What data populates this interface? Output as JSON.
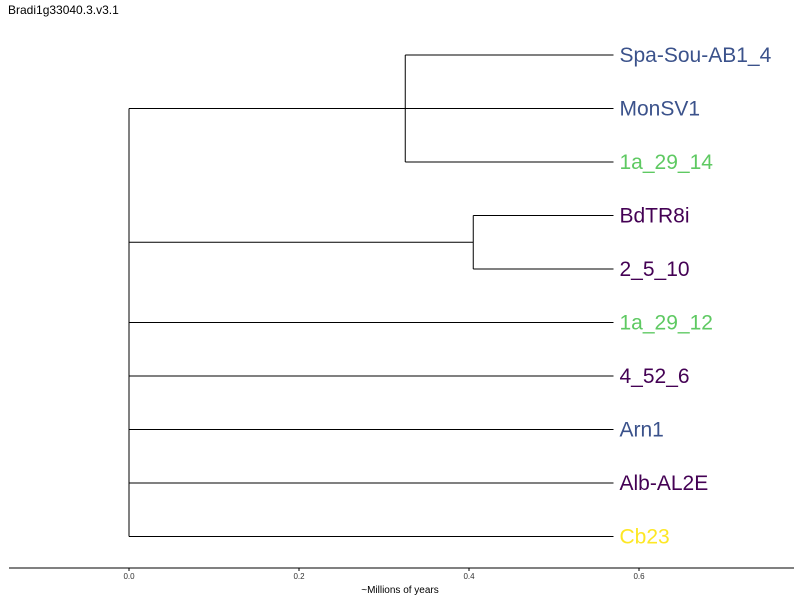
{
  "chart_data": {
    "type": "dendrogram",
    "title": "Bradi1g33040.3.v3.1",
    "xlabel": "~Millions of years",
    "xticks": [
      0.0,
      0.2,
      0.4,
      0.6
    ],
    "xtick_labels": [
      "0.0",
      "0.2",
      "0.4",
      "0.6"
    ],
    "xlim": [
      -0.14,
      0.78
    ],
    "grid": false,
    "leaves": [
      {
        "name": "Spa-Sou-AB1_4",
        "color": "#3b528b"
      },
      {
        "name": "MonSV1",
        "color": "#3b528b"
      },
      {
        "name": "1a_29_14",
        "color": "#5ec962"
      },
      {
        "name": "BdTR8i",
        "color": "#440154"
      },
      {
        "name": "2_5_10",
        "color": "#440154"
      },
      {
        "name": "1a_29_12",
        "color": "#5ec962"
      },
      {
        "name": "4_52_6",
        "color": "#440154"
      },
      {
        "name": "Arn1",
        "color": "#3b528b"
      },
      {
        "name": "Alb-AL2E",
        "color": "#440154"
      },
      {
        "name": "Cb23",
        "color": "#fde725"
      }
    ],
    "tip_time": 0.57,
    "internal_nodes": [
      {
        "children": [
          0,
          1,
          2
        ],
        "time": 0.325
      },
      {
        "children": [
          3,
          4
        ],
        "time": 0.405
      }
    ],
    "root": {
      "time": 0.0,
      "children": [
        "node0",
        "node1",
        5,
        6,
        7,
        8,
        9
      ]
    }
  }
}
